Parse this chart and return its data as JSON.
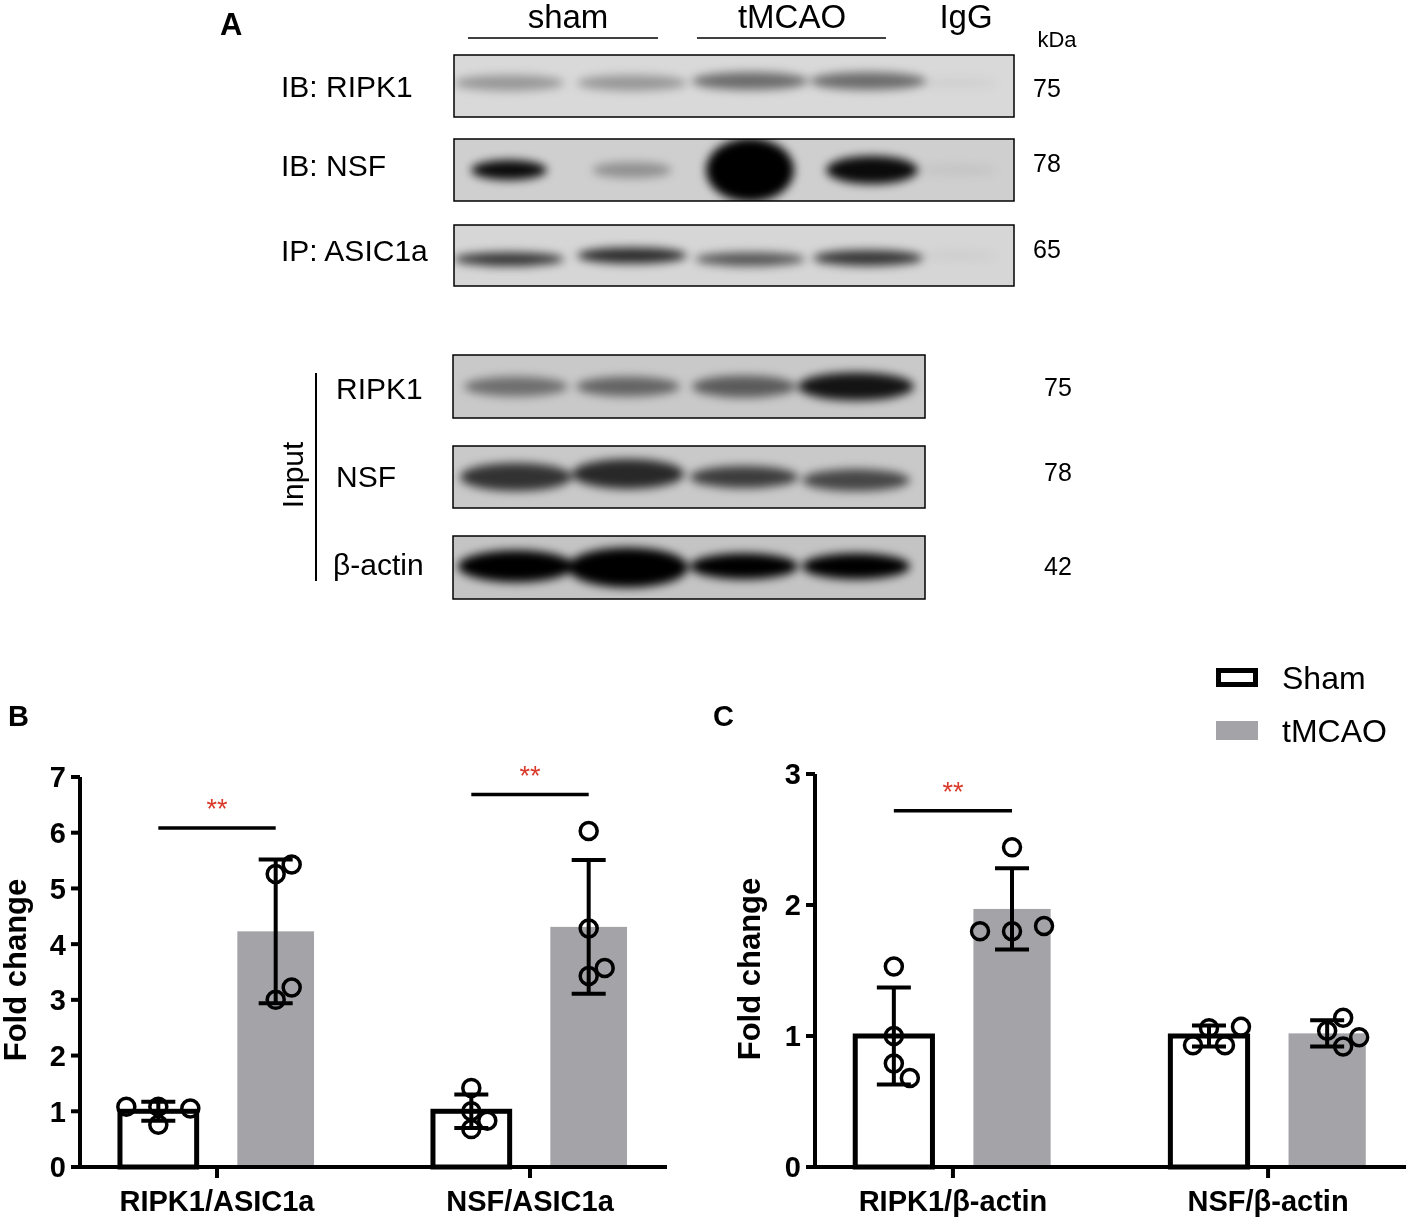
{
  "chart_data": [
    {
      "type": "other",
      "title": "A",
      "annotations": [
        "sham",
        "tMCAO",
        "IgG",
        "kDa",
        "IB: RIPK1",
        "IB: NSF",
        "IP: ASIC1a",
        "75",
        "78",
        "65",
        "Input",
        "RIPK1",
        "NSF",
        "β-actin",
        "75",
        "78",
        "42"
      ]
    },
    {
      "type": "bar",
      "title": "B",
      "ylabel": "Fold change",
      "categories": [
        "RIPK1/ASIC1a",
        "NSF/ASIC1a"
      ],
      "ylim": [
        0,
        7
      ],
      "yticks": [
        0,
        1,
        2,
        3,
        4,
        5,
        6,
        7
      ],
      "marker": "circle",
      "series": [
        {
          "color": "#ffffff",
          "values": [
            1,
            1
          ],
          "errors": [
            0.17,
            0.3
          ]
        },
        {
          "color": "#a3a3a8",
          "values": [
            4.23,
            4.31
          ],
          "errors": [
            1.29,
            1.2
          ]
        },
        {
          "type": "scatter",
          "color": "#000000",
          "x": [
            "RIPK1/ASIC1a",
            "RIPK1/ASIC1a",
            "RIPK1/ASIC1a",
            "RIPK1/ASIC1a",
            "NSF/ASIC1a",
            "NSF/ASIC1a",
            "NSF/ASIC1a",
            "NSF/ASIC1a"
          ],
          "values": [
            1.08,
            1.05,
            0.76,
            1.08,
            1.42,
            1,
            0.83,
            0.68
          ]
        },
        {
          "type": "scatter",
          "color": "#000000",
          "x": [
            "RIPK1/ASIC1a",
            "RIPK1/ASIC1a",
            "RIPK1/ASIC1a",
            "RIPK1/ASIC1a",
            "NSF/ASIC1a",
            "NSF/ASIC1a",
            "NSF/ASIC1a",
            "NSF/ASIC1a"
          ],
          "values": [
            5.26,
            5.43,
            3,
            3.22,
            6.03,
            4.28,
            3.43,
            3.57
          ]
        }
      ],
      "annotations": [
        "**",
        "**"
      ]
    },
    {
      "type": "bar",
      "title": "C",
      "ylabel": "Fold change",
      "categories": [
        "RIPK1/β-actin",
        "NSF/β-actin"
      ],
      "ylim": [
        0,
        3
      ],
      "yticks": [
        0,
        1,
        2,
        3
      ],
      "marker": "circle",
      "legend": "top right",
      "series": [
        {
          "name": "Sham",
          "color": "#ffffff",
          "values": [
            1,
            1
          ],
          "errors": [
            0.37,
            0.08
          ]
        },
        {
          "name": "tMCAO",
          "color": "#a3a3a8",
          "values": [
            1.97,
            1.02
          ],
          "errors": [
            0.31,
            0.1
          ]
        },
        {
          "type": "scatter",
          "color": "#000000",
          "x": [
            "RIPK1/β-actin",
            "RIPK1/β-actin",
            "RIPK1/β-actin",
            "RIPK1/β-actin",
            "NSF/β-actin",
            "NSF/β-actin",
            "NSF/β-actin",
            "NSF/β-actin"
          ],
          "values": [
            1.53,
            1,
            0.79,
            0.68,
            1.06,
            1.07,
            0.93,
            0.93
          ]
        },
        {
          "type": "scatter",
          "color": "#000000",
          "x": [
            "RIPK1/β-actin",
            "RIPK1/β-actin",
            "RIPK1/β-actin",
            "RIPK1/β-actin",
            "NSF/β-actin",
            "NSF/β-actin",
            "NSF/β-actin",
            "NSF/β-actin"
          ],
          "values": [
            2.44,
            1.8,
            1.84,
            1.8,
            1.04,
            1.14,
            0.92,
            0.99
          ]
        }
      ],
      "annotations": [
        "**"
      ]
    }
  ]
}
